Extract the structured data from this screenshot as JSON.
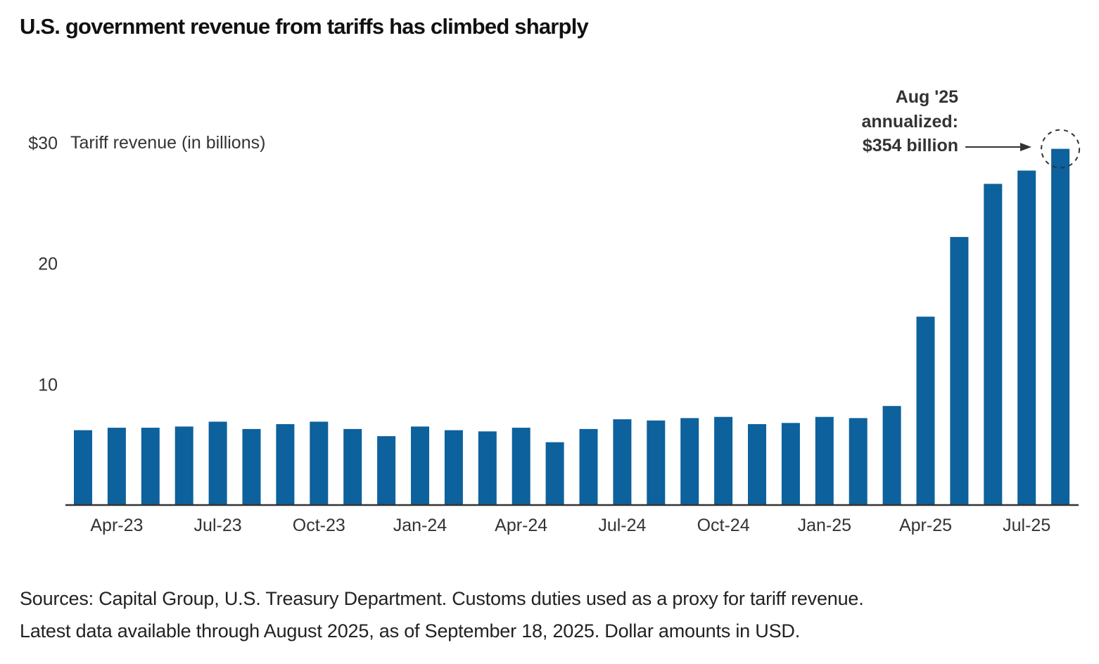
{
  "title": "U.S. government revenue from tariffs has climbed sharply",
  "footnotes": [
    "Sources: Capital Group, U.S. Treasury Department. Customs duties used as a proxy for tariff revenue.",
    "Latest data available through August 2025, as of September 18, 2025. Dollar amounts in USD."
  ],
  "colors": {
    "bar": "#0d619c",
    "axis": "#333333",
    "text": "#333333"
  },
  "chart_data": {
    "type": "bar",
    "title": "U.S. government revenue from tariffs has climbed sharply",
    "ylabel": "Tariff revenue (in billions)",
    "xlabel": "",
    "ylim": [
      0,
      30
    ],
    "yticks": [
      10,
      20,
      30
    ],
    "ytick_labels": [
      "10",
      "20",
      "$30"
    ],
    "grid": false,
    "categories": [
      "Mar-23",
      "Apr-23",
      "May-23",
      "Jun-23",
      "Jul-23",
      "Aug-23",
      "Sep-23",
      "Oct-23",
      "Nov-23",
      "Dec-23",
      "Jan-24",
      "Feb-24",
      "Mar-24",
      "Apr-24",
      "May-24",
      "Jun-24",
      "Jul-24",
      "Aug-24",
      "Sep-24",
      "Oct-24",
      "Nov-24",
      "Dec-24",
      "Jan-25",
      "Feb-25",
      "Mar-25",
      "Apr-25",
      "May-25",
      "Jun-25",
      "Jul-25",
      "Aug-25"
    ],
    "xtick_labels": [
      "Apr-23",
      "Jul-23",
      "Oct-23",
      "Jan-24",
      "Apr-24",
      "Jul-24",
      "Oct-24",
      "Jan-25",
      "Apr-25",
      "Jul-25"
    ],
    "values": [
      6.2,
      6.4,
      6.4,
      6.5,
      6.9,
      6.3,
      6.7,
      6.9,
      6.3,
      5.7,
      6.5,
      6.2,
      6.1,
      6.4,
      5.2,
      6.3,
      7.1,
      7.0,
      7.2,
      7.3,
      6.7,
      6.8,
      7.3,
      7.2,
      8.2,
      15.6,
      22.2,
      26.6,
      27.7,
      29.5
    ],
    "annotation": {
      "target": "Aug-25",
      "lines": [
        "Aug '25",
        "annualized:",
        "$354 billion"
      ]
    }
  }
}
